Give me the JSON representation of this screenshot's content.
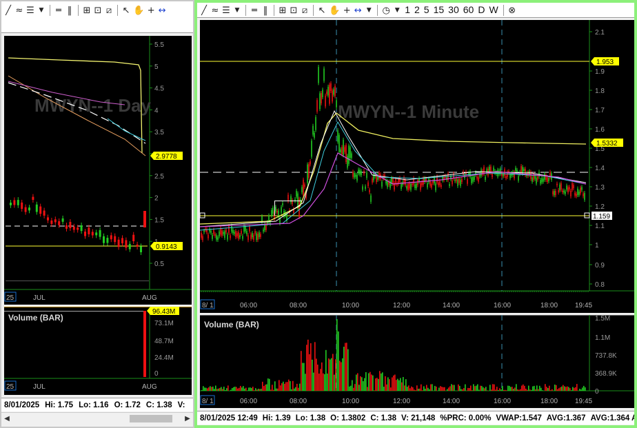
{
  "left": {
    "toolbar": {
      "icons": [
        "draw-line-icon",
        "zigzag-icon",
        "indicators-icon",
        "chevron-down-icon",
        "horizontal-bars-icon",
        "vertical-bars-icon",
        "crosshair-box-icon",
        "zoom-box-icon",
        "zoom-out-icon",
        "cursor-icon",
        "hand-icon",
        "crosshair-icon",
        "measure-icon"
      ]
    },
    "watermark": "MWYN--1 Day",
    "price_axis": [
      "5.5",
      "5",
      "4.5",
      "4",
      "3.5",
      "3",
      "2.5",
      "2",
      "1.5",
      "1",
      "0.5"
    ],
    "price_markers": {
      "current": "2.9778",
      "lower": "0.9143"
    },
    "date_labels": [
      "25",
      "JUL",
      "AUG"
    ],
    "volume_title": "Volume (BAR)",
    "volume_axis": [
      "73.1M",
      "48.7M",
      "24.4M",
      "0"
    ],
    "volume_marker": "96.43M",
    "status": {
      "date": "8/01/2025",
      "hi": "Hi: 1.75",
      "lo": "Lo: 1.16",
      "open": "O: 1.72",
      "close": "C: 1.38",
      "v": "V:"
    }
  },
  "right": {
    "toolbar": {
      "icons": [
        "draw-line-icon",
        "zigzag-icon",
        "indicators-icon",
        "chevron-down-icon",
        "horizontal-bars-icon",
        "vertical-bars-icon",
        "crosshair-box-icon",
        "zoom-box-icon",
        "zoom-out-icon",
        "cursor-icon",
        "hand-icon",
        "crosshair-icon",
        "measure-icon",
        "chevron-down-icon",
        "clock-icon",
        "chevron-down-icon"
      ],
      "intervals": [
        "1",
        "2",
        "5",
        "15",
        "30",
        "60",
        "D",
        "W"
      ],
      "close_icon": "close-circle-icon"
    },
    "watermark": "MWYN--1 Minute",
    "price_axis": [
      "2.1",
      "1.9",
      "1.8",
      "1.7",
      "1.6",
      "1.5",
      "1.4",
      "1.3",
      "1.2",
      "1.1",
      "1",
      "0.9",
      "0.8"
    ],
    "price_markers": {
      "high": "1.953",
      "mid": "1.5332",
      "low": "1.159"
    },
    "date_start": "8/ 1",
    "time_labels": [
      "06:00",
      "08:00",
      "10:00",
      "12:00",
      "14:00",
      "16:00",
      "18:00",
      "19:45"
    ],
    "volume_title": "Volume (BAR)",
    "volume_axis": [
      "1.5M",
      "1.1M",
      "737.8K",
      "368.9K",
      "0"
    ],
    "status": {
      "datetime": "8/01/2025 12:49",
      "hi": "Hi: 1.39",
      "lo": "Lo: 1.38",
      "open": "O: 1.3802",
      "close": "C: 1.38",
      "v": "V: 21,148",
      "prc": "%PRC: 0.00%",
      "vwap": "VWAP:1.547",
      "avg1": "AVG:1.367",
      "avg2": "AVG:1.364 A"
    }
  },
  "colors": {
    "up": "#22cc22",
    "down": "#ee1111",
    "yellow": "#ffff33",
    "marker_bg": "#ffff00",
    "axis": "#1a8f1a",
    "dash_blue": "#3a8fb0",
    "active_border": "#8cf07a"
  }
}
